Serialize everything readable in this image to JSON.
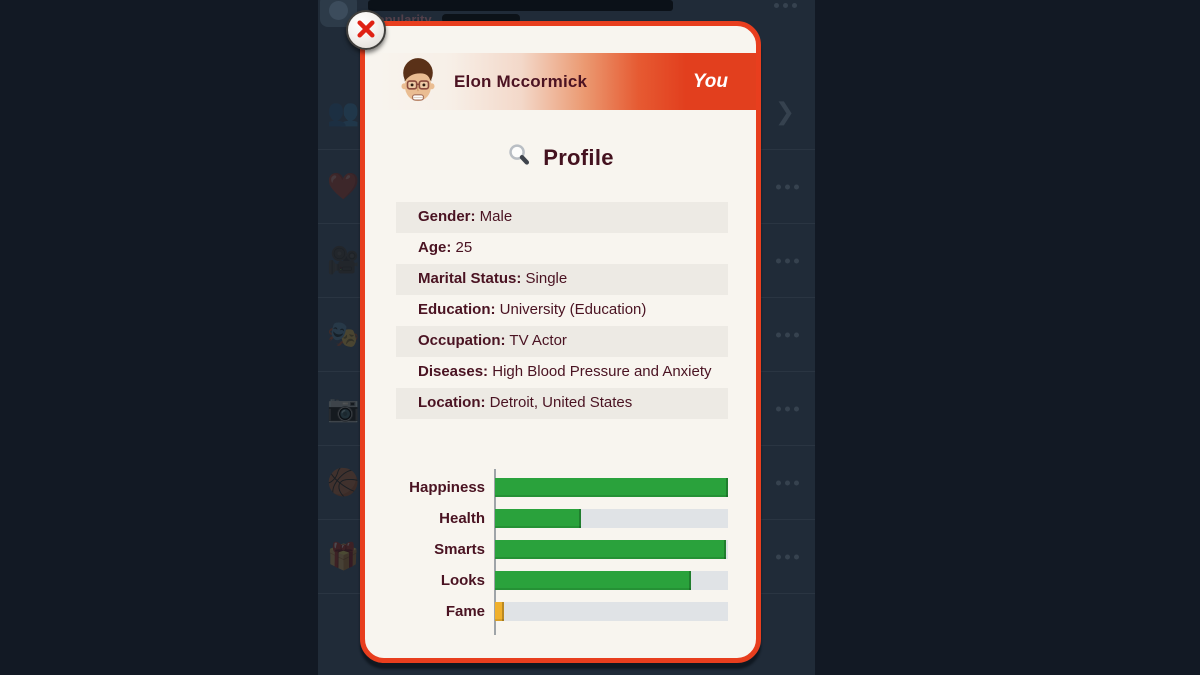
{
  "background": {
    "top_item": {
      "popularity_label": "Popularity"
    },
    "chevron": "❯",
    "rows": [
      {
        "icon": "👥",
        "icon_name": "people-icon",
        "trailing": "chevron"
      },
      {
        "icon": "❤️",
        "icon_name": "heart-icon",
        "trailing": "dots"
      },
      {
        "icon": "🎥",
        "icon_name": "movie-camera-icon",
        "trailing": "dots"
      },
      {
        "icon": "🎭",
        "icon_name": "theater-masks-icon",
        "trailing": "dots"
      },
      {
        "icon": "📷",
        "icon_name": "camera-icon",
        "trailing": "dots"
      },
      {
        "icon": "🏀",
        "icon_name": "basketball-icon",
        "trailing": "dots"
      },
      {
        "icon": "🎁",
        "icon_name": "gift-icon",
        "trailing": "dots"
      }
    ]
  },
  "dialog": {
    "header": {
      "name": "Elon Mccormick",
      "badge": "You"
    },
    "section_title": "Profile",
    "fields": [
      {
        "key": "gender",
        "label": "Gender:",
        "value": "Male"
      },
      {
        "key": "age",
        "label": "Age:",
        "value": "25"
      },
      {
        "key": "marital-status",
        "label": "Marital Status:",
        "value": "Single"
      },
      {
        "key": "education",
        "label": "Education:",
        "value": "University (Education)"
      },
      {
        "key": "occupation",
        "label": "Occupation:",
        "value": "TV Actor"
      },
      {
        "key": "diseases",
        "label": "Diseases:",
        "value": "High Blood Pressure and Anxiety"
      },
      {
        "key": "location",
        "label": "Location:",
        "value": "Detroit, United States"
      }
    ]
  },
  "chart_data": {
    "type": "bar",
    "orientation": "horizontal",
    "categories": [
      "Happiness",
      "Health",
      "Smarts",
      "Looks",
      "Fame"
    ],
    "values": [
      100,
      37,
      99,
      84,
      4
    ],
    "bar_colors": [
      "#2aa23c",
      "#2aa23c",
      "#2aa23c",
      "#2aa23c",
      "#f0b02c"
    ],
    "track_color": "#e0e3e6",
    "xlim": [
      0,
      100
    ],
    "grid": false,
    "legend": false
  },
  "colors": {
    "accent_red": "#e83e1e",
    "maroon_text": "#4a1322",
    "dialog_bg": "#f8f5ef",
    "row_shade": "#edeae4",
    "stat_green": "#2aa23c",
    "fame_orange": "#f0b02c",
    "bg_navy": "#202b38"
  }
}
